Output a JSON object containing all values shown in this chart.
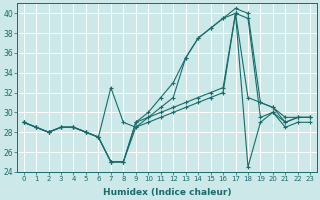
{
  "xlabel": "Humidex (Indice chaleur)",
  "background_color": "#cce8e8",
  "grid_color": "#ffffff",
  "line_color": "#1a6b6b",
  "xlim": [
    -0.5,
    23.5
  ],
  "ylim": [
    24,
    41
  ],
  "yticks": [
    24,
    26,
    28,
    30,
    32,
    34,
    36,
    38,
    40
  ],
  "xticks": [
    0,
    1,
    2,
    3,
    4,
    5,
    6,
    7,
    8,
    9,
    10,
    11,
    12,
    13,
    14,
    15,
    16,
    17,
    18,
    19,
    20,
    21,
    22,
    23
  ],
  "series": [
    [
      29.0,
      28.5,
      28.0,
      28.5,
      28.5,
      28.0,
      27.5,
      25.0,
      25.0,
      29.0,
      29.5,
      30.0,
      30.5,
      31.0,
      31.5,
      32.0,
      32.5,
      40.0,
      31.5,
      31.0,
      30.5,
      29.5,
      29.5,
      29.5
    ],
    [
      29.0,
      28.5,
      28.0,
      28.5,
      28.5,
      28.0,
      27.5,
      25.0,
      25.0,
      28.5,
      29.0,
      29.5,
      30.0,
      30.5,
      31.0,
      31.5,
      32.0,
      40.0,
      24.5,
      29.0,
      30.0,
      29.0,
      29.5,
      29.5
    ],
    [
      29.0,
      28.5,
      28.0,
      28.5,
      28.5,
      28.0,
      27.5,
      32.5,
      29.0,
      28.5,
      29.5,
      30.5,
      31.5,
      35.5,
      37.5,
      38.5,
      39.5,
      40.0,
      39.5,
      29.5,
      30.0,
      28.5,
      29.0,
      29.0
    ],
    [
      29.0,
      28.5,
      28.0,
      28.5,
      28.5,
      28.0,
      27.5,
      25.0,
      25.0,
      29.0,
      30.0,
      31.5,
      33.0,
      35.5,
      37.5,
      38.5,
      39.5,
      40.5,
      40.0,
      31.0,
      30.5,
      29.0,
      29.5,
      29.5
    ]
  ]
}
